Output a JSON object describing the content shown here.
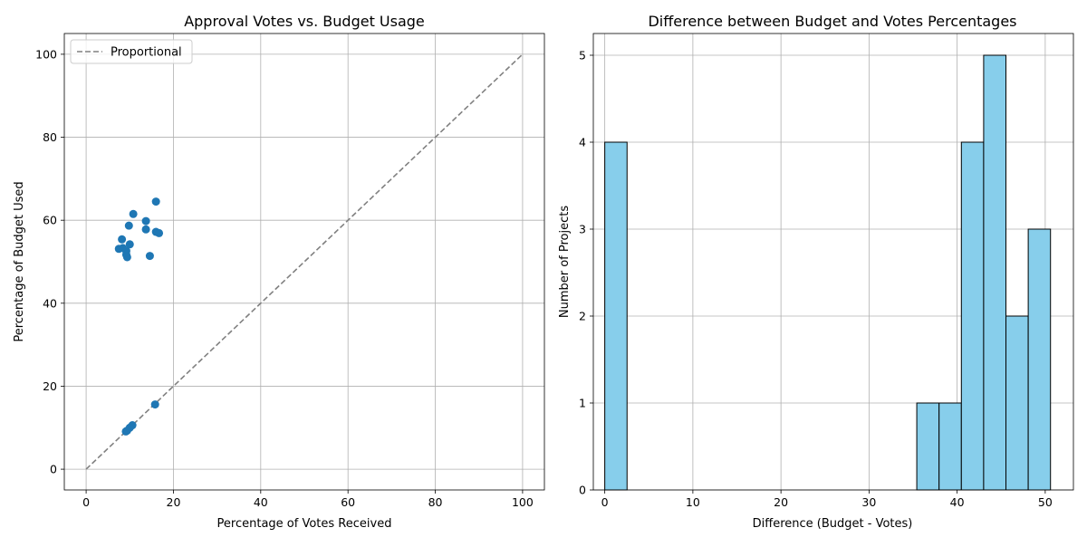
{
  "chart_data": [
    {
      "type": "scatter",
      "title": "Approval Votes vs. Budget Usage",
      "xlabel": "Percentage of Votes Received",
      "ylabel": "Percentage of Budget Used",
      "xlim": [
        -5,
        105
      ],
      "ylim": [
        -5,
        105
      ],
      "xticks": [
        0,
        20,
        40,
        60,
        80,
        100
      ],
      "yticks": [
        0,
        20,
        40,
        60,
        80,
        100
      ],
      "grid": true,
      "legend": {
        "position": "top-left",
        "entries": [
          "Proportional"
        ]
      },
      "reference_line": {
        "name": "Proportional",
        "x": [
          0,
          100
        ],
        "y": [
          0,
          100
        ],
        "style": "dashed",
        "color": "#808080"
      },
      "point_color": "#1f77b4",
      "points": [
        {
          "x": 16.0,
          "y": 64.5
        },
        {
          "x": 10.8,
          "y": 61.5
        },
        {
          "x": 13.7,
          "y": 59.8
        },
        {
          "x": 9.8,
          "y": 58.7
        },
        {
          "x": 13.7,
          "y": 57.8
        },
        {
          "x": 16.0,
          "y": 57.2
        },
        {
          "x": 16.7,
          "y": 56.9
        },
        {
          "x": 8.2,
          "y": 55.4
        },
        {
          "x": 10.0,
          "y": 54.2
        },
        {
          "x": 7.5,
          "y": 53.1
        },
        {
          "x": 8.4,
          "y": 53.3
        },
        {
          "x": 9.2,
          "y": 52.6
        },
        {
          "x": 9.2,
          "y": 51.7
        },
        {
          "x": 9.4,
          "y": 51.1
        },
        {
          "x": 14.6,
          "y": 51.4
        },
        {
          "x": 15.8,
          "y": 15.6
        },
        {
          "x": 10.6,
          "y": 10.6
        },
        {
          "x": 10.0,
          "y": 10.0
        },
        {
          "x": 9.4,
          "y": 9.3
        },
        {
          "x": 9.1,
          "y": 9.1
        }
      ]
    },
    {
      "type": "bar",
      "title": "Difference between Budget and Votes Percentages",
      "xlabel": "Difference (Budget - Votes)",
      "ylabel": "Number of Projects",
      "xlim": [
        -1.3,
        53.2
      ],
      "ylim": [
        0,
        5.25
      ],
      "xticks": [
        0,
        10,
        20,
        30,
        40,
        50
      ],
      "yticks": [
        0,
        1,
        2,
        3,
        4,
        5
      ],
      "grid": true,
      "bar_color": "#87ceeb",
      "edge_color": "#000000",
      "bins": [
        {
          "start": 0.0,
          "end": 2.53,
          "count": 4
        },
        {
          "start": 2.53,
          "end": 5.06,
          "count": 0
        },
        {
          "start": 5.06,
          "end": 7.59,
          "count": 0
        },
        {
          "start": 7.59,
          "end": 10.12,
          "count": 0
        },
        {
          "start": 10.12,
          "end": 12.65,
          "count": 0
        },
        {
          "start": 12.65,
          "end": 15.18,
          "count": 0
        },
        {
          "start": 15.18,
          "end": 17.71,
          "count": 0
        },
        {
          "start": 17.71,
          "end": 20.24,
          "count": 0
        },
        {
          "start": 20.24,
          "end": 22.77,
          "count": 0
        },
        {
          "start": 22.77,
          "end": 25.3,
          "count": 0
        },
        {
          "start": 25.3,
          "end": 27.83,
          "count": 0
        },
        {
          "start": 27.83,
          "end": 30.36,
          "count": 0
        },
        {
          "start": 30.36,
          "end": 32.89,
          "count": 0
        },
        {
          "start": 32.89,
          "end": 35.42,
          "count": 0
        },
        {
          "start": 35.42,
          "end": 37.95,
          "count": 1
        },
        {
          "start": 37.95,
          "end": 40.48,
          "count": 1
        },
        {
          "start": 40.48,
          "end": 43.01,
          "count": 4
        },
        {
          "start": 43.01,
          "end": 45.54,
          "count": 5
        },
        {
          "start": 45.54,
          "end": 48.07,
          "count": 2
        },
        {
          "start": 48.07,
          "end": 50.6,
          "count": 3
        }
      ]
    }
  ]
}
